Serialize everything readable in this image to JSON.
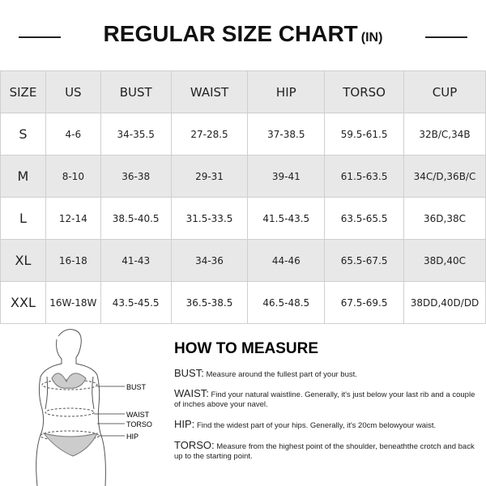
{
  "title": "REGULAR SIZE CHART",
  "unit": "(IN)",
  "columns": [
    "SIZE",
    "US",
    "BUST",
    "WAIST",
    "HIP",
    "TORSO",
    "CUP"
  ],
  "rows": [
    [
      "S",
      "4-6",
      "34-35.5",
      "27-28.5",
      "37-38.5",
      "59.5-61.5",
      "32B/C,34B"
    ],
    [
      "M",
      "8-10",
      "36-38",
      "29-31",
      "39-41",
      "61.5-63.5",
      "34C/D,36B/C"
    ],
    [
      "L",
      "12-14",
      "38.5-40.5",
      "31.5-33.5",
      "41.5-43.5",
      "63.5-65.5",
      "36D,38C"
    ],
    [
      "XL",
      "16-18",
      "41-43",
      "34-36",
      "44-46",
      "65.5-67.5",
      "38D,40C"
    ],
    [
      "XXL",
      "16W-18W",
      "43.5-45.5",
      "36.5-38.5",
      "46.5-48.5",
      "67.5-69.5",
      "38DD,40D/DD"
    ]
  ],
  "figure_labels": [
    "BUST",
    "WAIST",
    "TORSO",
    "HIP"
  ],
  "how": {
    "heading": "HOW TO MEASURE",
    "items": [
      {
        "term": "BUST:",
        "text": "Measure around the fullest part of your bust."
      },
      {
        "term": "WAIST:",
        "text": "Find your natural waistline. Generally, it's just below your last rib and a couple of inches above your navel."
      },
      {
        "term": "HIP:",
        "text": "Find the widest part of your hips. Generally, it's 20cm belowyour waist."
      },
      {
        "term": "TORSO:",
        "text": "Measure from the highest point of the shoulder, beneaththe crotch and back up to the starting point."
      }
    ]
  }
}
